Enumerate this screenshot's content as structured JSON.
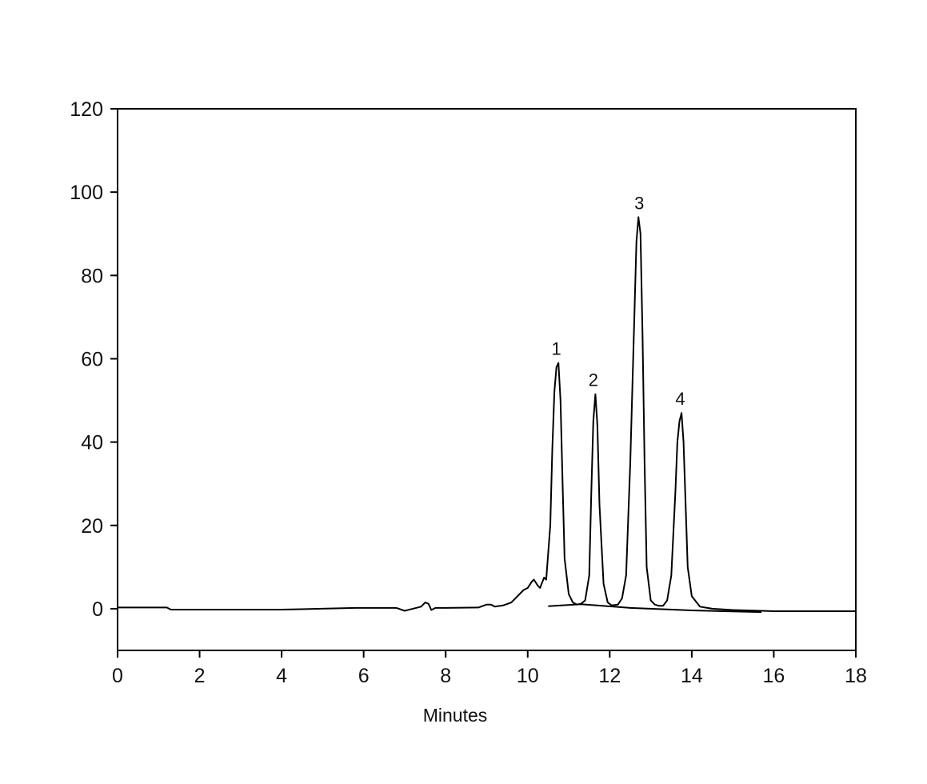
{
  "chart_data": {
    "type": "line",
    "title": "",
    "xlabel": "Minutes",
    "ylabel": "",
    "xlim": [
      0,
      18
    ],
    "ylim": [
      -10,
      120
    ],
    "x_ticks": [
      0,
      2,
      4,
      6,
      8,
      10,
      12,
      14,
      16,
      18
    ],
    "y_ticks": [
      0,
      20,
      40,
      60,
      80,
      100,
      120
    ],
    "grid": false,
    "legend": "none",
    "line_color": "#000000",
    "series": [
      {
        "x": [
          0,
          1.2,
          1.3,
          2,
          4,
          5.8,
          6.8,
          7.0,
          7.4,
          7.5,
          7.58,
          7.65,
          7.75,
          8,
          8.8,
          9.0,
          9.1,
          9.2,
          9.4,
          9.6,
          9.7,
          9.9,
          10.0,
          10.1,
          10.15,
          10.25,
          10.3,
          10.4,
          10.45,
          10.55,
          10.6,
          10.65,
          10.7,
          10.75,
          10.8,
          10.85,
          10.9,
          11.0,
          11.1,
          11.2,
          11.3,
          11.4,
          11.5,
          11.55,
          11.6,
          11.65,
          11.7,
          11.75,
          11.85,
          11.95,
          12.05,
          12.2,
          12.3,
          12.4,
          12.5,
          12.6,
          12.65,
          12.7,
          12.75,
          12.8,
          12.85,
          12.9,
          13.0,
          13.1,
          13.2,
          13.3,
          13.4,
          13.5,
          13.6,
          13.65,
          13.7,
          13.75,
          13.8,
          13.85,
          13.9,
          14.0,
          14.2,
          14.5,
          15.0,
          15.7,
          16.0,
          16.5,
          17.0,
          18.0
        ],
        "y": [
          0.3,
          0.3,
          -0.2,
          -0.2,
          -0.2,
          0.2,
          0.2,
          -0.5,
          0.5,
          1.5,
          1.2,
          -0.3,
          0.2,
          0.2,
          0.3,
          1.0,
          1.0,
          0.5,
          0.8,
          1.5,
          2.5,
          4.5,
          5.0,
          6.5,
          7.0,
          5.5,
          5.0,
          7.5,
          7.0,
          20.0,
          38.0,
          52.0,
          58.0,
          59.0,
          50.0,
          30.0,
          12.0,
          3.5,
          1.5,
          1.0,
          1.2,
          2.0,
          8.0,
          28.0,
          45.0,
          51.5,
          44.0,
          25.0,
          6.0,
          1.5,
          0.8,
          1.0,
          2.5,
          8.0,
          35.0,
          70.0,
          88.0,
          94.0,
          90.0,
          65.0,
          35.0,
          10.0,
          2.0,
          1.0,
          0.7,
          0.7,
          2.0,
          8.0,
          28.0,
          40.0,
          45.0,
          47.0,
          40.0,
          25.0,
          10.0,
          3.0,
          0.5,
          0.0,
          -0.3,
          -0.5,
          -0.6,
          -0.6,
          -0.6,
          -0.6
        ]
      }
    ],
    "baseline": {
      "x": [
        10.5,
        11.3,
        12.5,
        14.0,
        15.7
      ],
      "y": [
        0.6,
        1.1,
        0.2,
        -0.4,
        -0.8
      ]
    },
    "annotations": [
      {
        "text": "1",
        "x": 10.7,
        "y": 59
      },
      {
        "text": "2",
        "x": 11.6,
        "y": 51.5
      },
      {
        "text": "3",
        "x": 12.72,
        "y": 94
      },
      {
        "text": "4",
        "x": 13.72,
        "y": 47
      }
    ]
  }
}
